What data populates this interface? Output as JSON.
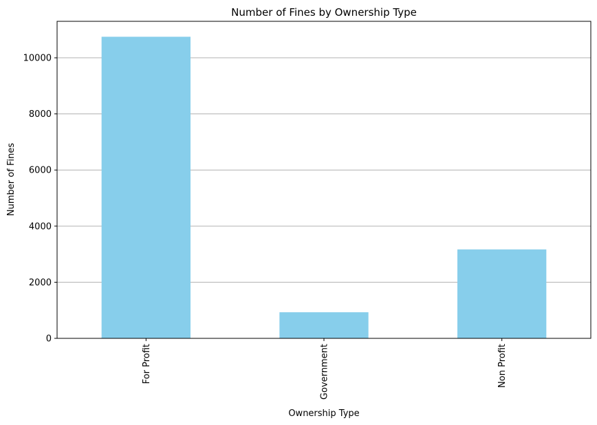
{
  "chart_data": {
    "type": "bar",
    "title": "Number of Fines by Ownership Type",
    "xlabel": "Ownership Type",
    "ylabel": "Number of Fines",
    "categories": [
      "For Profit",
      "Government",
      "Non Profit"
    ],
    "values": [
      10750,
      930,
      3170
    ],
    "ylim": [
      0,
      11300
    ],
    "yticks": [
      0,
      2000,
      4000,
      6000,
      8000,
      10000
    ],
    "grid": "y",
    "bar_color": "#87CEEB",
    "legend": "none"
  }
}
